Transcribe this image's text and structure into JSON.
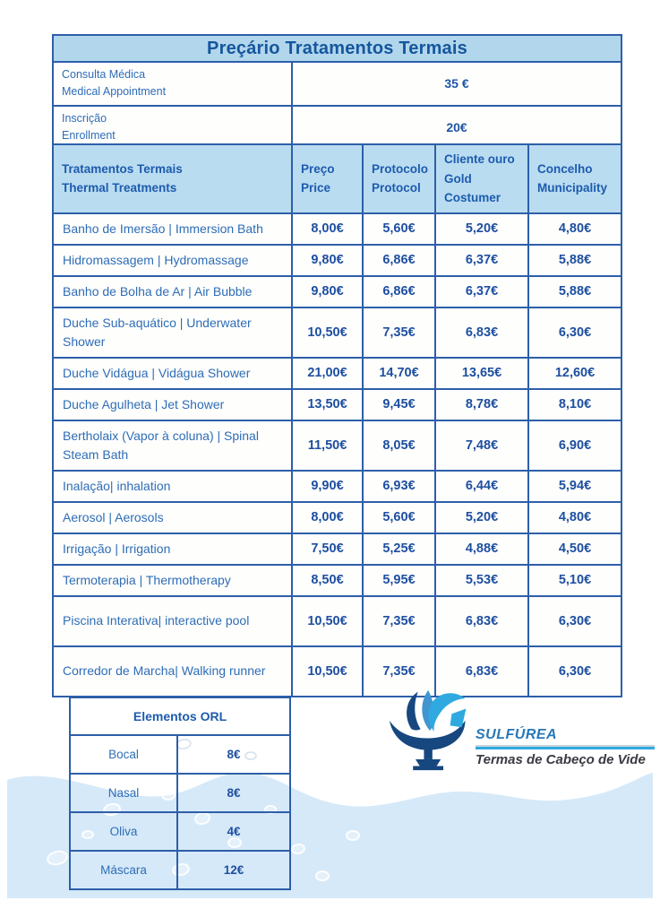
{
  "title": "Preçário Tratamentos Termais",
  "top_rows": [
    {
      "label_pt": "Consulta Médica",
      "label_en": "Medical Appointment",
      "value": "35 €"
    },
    {
      "label_pt": "Inscrição",
      "label_en": "Enrollment",
      "value": "20€"
    }
  ],
  "treatments": {
    "header": {
      "col1_pt": "Tratamentos Termais",
      "col1_en": "Thermal Treatments",
      "col2_pt": "Preço",
      "col2_en": "Price",
      "col3_pt": "Protocolo",
      "col3_en": "Protocol",
      "col4_pt": "Cliente ouro",
      "col4_en": "Gold Costumer",
      "col5_pt": "Concelho",
      "col5_en": "Municipality"
    },
    "rows": [
      {
        "name": "Banho de Imersão |  Immersion Bath",
        "price": "8,00€",
        "protocol": "5,60€",
        "gold": "5,20€",
        "municipality": "4,80€",
        "tall": false
      },
      {
        "name": "Hidromassagem |  Hydromassage",
        "price": "9,80€",
        "protocol": "6,86€",
        "gold": "6,37€",
        "municipality": "5,88€",
        "tall": false
      },
      {
        "name": "Banho de Bolha de Ar | Air Bubble",
        "price": "9,80€",
        "protocol": "6,86€",
        "gold": "6,37€",
        "municipality": "5,88€",
        "tall": false
      },
      {
        "name": "Duche Sub-aquático | Underwater Shower",
        "price": "10,50€",
        "protocol": "7,35€",
        "gold": "6,83€",
        "municipality": "6,30€",
        "tall": true
      },
      {
        "name": "Duche Vidágua |  Vidágua Shower",
        "price": "21,00€",
        "protocol": "14,70€",
        "gold": "13,65€",
        "municipality": "12,60€",
        "tall": false
      },
      {
        "name": "Duche Agulheta |  Jet Shower",
        "price": "13,50€",
        "protocol": "9,45€",
        "gold": "8,78€",
        "municipality": "8,10€",
        "tall": false
      },
      {
        "name": "Bertholaix (Vapor à coluna) |  Spinal Steam Bath",
        "price": "11,50€",
        "protocol": "8,05€",
        "gold": "7,48€",
        "municipality": "6,90€",
        "tall": true
      },
      {
        "name": "Inalação| inhalation",
        "price": "9,90€",
        "protocol": "6,93€",
        "gold": "6,44€",
        "municipality": "5,94€",
        "tall": false
      },
      {
        "name": "Aerosol | Aerosols",
        "price": "8,00€",
        "protocol": "5,60€",
        "gold": "5,20€",
        "municipality": "4,80€",
        "tall": false
      },
      {
        "name": "Irrigação | Irrigation",
        "price": "7,50€",
        "protocol": "5,25€",
        "gold": "4,88€",
        "municipality": "4,50€",
        "tall": false
      },
      {
        "name": "Termoterapia | Thermotherapy",
        "price": "8,50€",
        "protocol": "5,95€",
        "gold": "5,53€",
        "municipality": "5,10€",
        "tall": false
      },
      {
        "name": "Piscina Interativa| interactive pool",
        "price": "10,50€",
        "protocol": "7,35€",
        "gold": "6,83€",
        "municipality": "6,30€",
        "tall": true
      },
      {
        "name": "Corredor de Marcha| Walking runner",
        "price": "10,50€",
        "protocol": "7,35€",
        "gold": "6,83€",
        "municipality": "6,30€",
        "tall": true
      }
    ]
  },
  "orl": {
    "title": "Elementos ORL",
    "rows": [
      {
        "label": "Bocal",
        "value": "8€"
      },
      {
        "label": "Nasal",
        "value": "8€"
      },
      {
        "label": "Oliva",
        "value": "4€"
      },
      {
        "label": "Máscara",
        "value": "12€"
      }
    ]
  },
  "logo": {
    "name": "SULFÚREA",
    "subtitle": "Termas de Cabeço de Vide"
  },
  "colors": {
    "border_blue": "#2d5fa9",
    "title_bg": "#b2d6ec",
    "header_bg": "#badcf1",
    "text_blue": "#2e6db6",
    "value_blue": "#1e4fa0",
    "wave_blue": "#d6e9f8",
    "logo_dark_blue": "#16477f",
    "logo_mid_blue": "#4196cf",
    "logo_light_blue": "#2fa9e0"
  }
}
